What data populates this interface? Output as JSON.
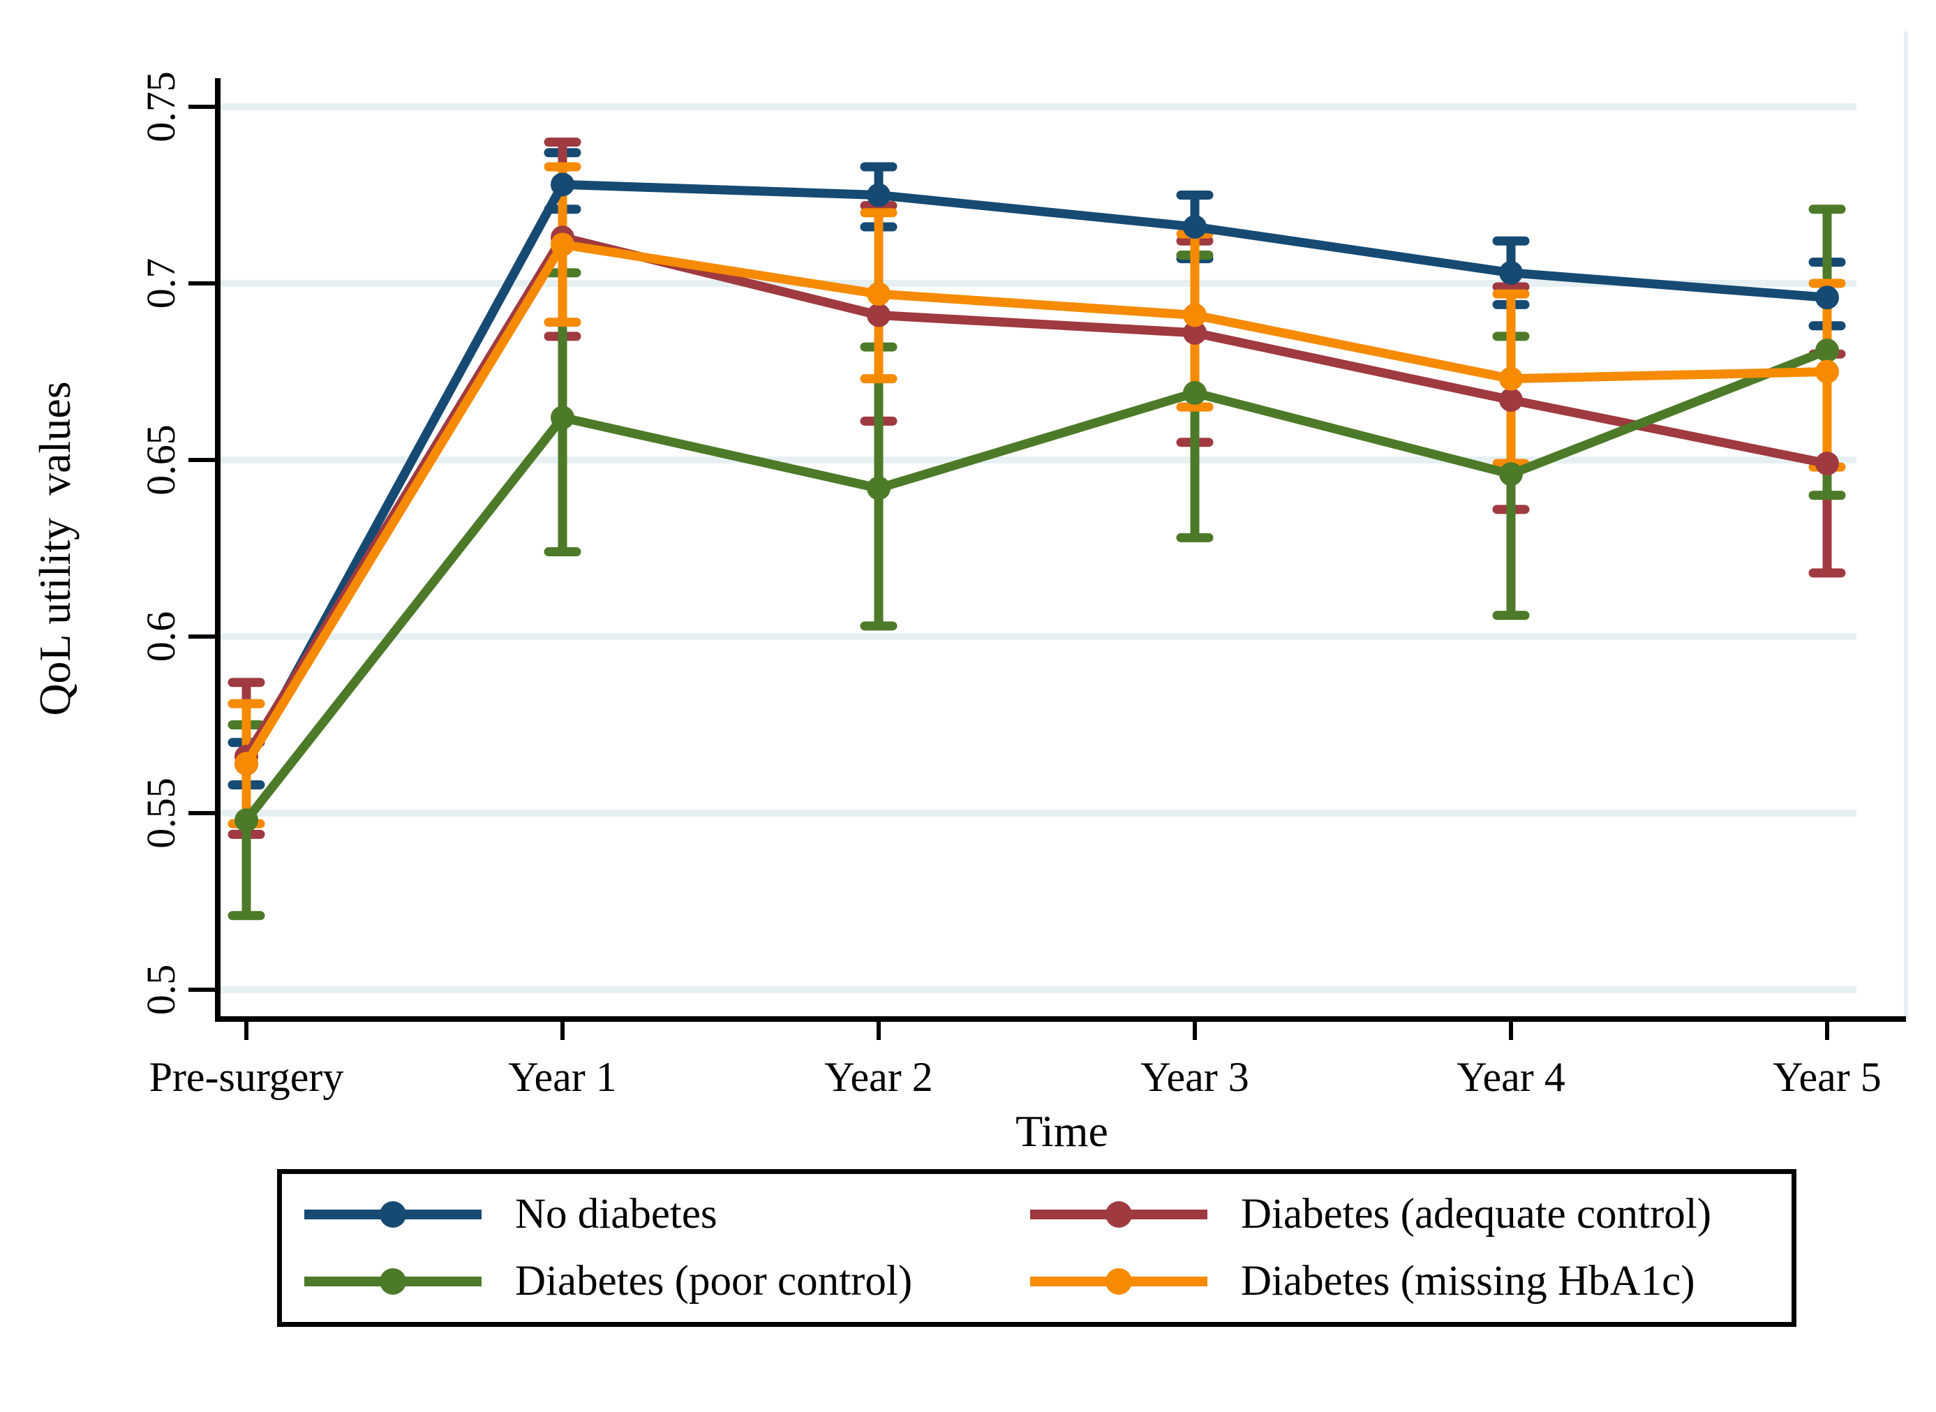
{
  "figure": {
    "background": "#ffffff",
    "plot_border_color": "#000000",
    "gridline_color": "#e6f0f2"
  },
  "axes": {
    "y_title": "QoL utility  values",
    "x_title": "Time",
    "ytick_labels": [
      "0.5",
      "0.55",
      "0.6",
      "0.65",
      "0.7",
      "0.75"
    ],
    "x_categories": [
      "Pre-surgery",
      "Year 1",
      "Year 2",
      "Year 3",
      "Year 4",
      "Year 5"
    ]
  },
  "chart_data": {
    "type": "line",
    "title": "",
    "xlabel": "Time",
    "ylabel": "QoL utility  values",
    "categories": [
      "Pre-surgery",
      "Year 1",
      "Year 2",
      "Year 3",
      "Year 4",
      "Year 5"
    ],
    "ylim": [
      0.485,
      0.765
    ],
    "yticks": [
      0.5,
      0.55,
      0.6,
      0.65,
      0.7,
      0.75
    ],
    "ytick_labels": [
      "0.5",
      "0.55",
      "0.6",
      "0.65",
      "0.7",
      "0.75"
    ],
    "grid": true,
    "error_bars": true,
    "legend_position": "bottom",
    "series": [
      {
        "name": "No diabetes",
        "color": "#164a73",
        "marker": "circle",
        "values": [
          0.564,
          0.728,
          0.725,
          0.716,
          0.703,
          0.696
        ],
        "ci_low": [
          0.558,
          0.721,
          0.716,
          0.707,
          0.694,
          0.688
        ],
        "ci_high": [
          0.57,
          0.737,
          0.733,
          0.725,
          0.712,
          0.706
        ]
      },
      {
        "name": "Diabetes (adequate control)",
        "color": "#9f3a40",
        "marker": "circle",
        "values": [
          0.566,
          0.713,
          0.691,
          0.686,
          0.667,
          0.649
        ],
        "ci_low": [
          0.544,
          0.685,
          0.661,
          0.655,
          0.636,
          0.618
        ],
        "ci_high": [
          0.587,
          0.74,
          0.722,
          0.712,
          0.699,
          0.68
        ]
      },
      {
        "name": "Diabetes (poor control)",
        "color": "#4d7a28",
        "marker": "circle",
        "values": [
          0.548,
          0.662,
          0.642,
          0.669,
          0.646,
          0.681
        ],
        "ci_low": [
          0.521,
          0.624,
          0.603,
          0.628,
          0.606,
          0.64
        ],
        "ci_high": [
          0.575,
          0.703,
          0.682,
          0.708,
          0.685,
          0.721
        ]
      },
      {
        "name": "Diabetes (missing HbA1c)",
        "color": "#f68a00",
        "marker": "circle",
        "values": [
          0.564,
          0.711,
          0.697,
          0.691,
          0.673,
          0.675
        ],
        "ci_low": [
          0.547,
          0.689,
          0.673,
          0.665,
          0.649,
          0.648
        ],
        "ci_high": [
          0.581,
          0.733,
          0.72,
          0.714,
          0.697,
          0.7
        ]
      }
    ]
  }
}
